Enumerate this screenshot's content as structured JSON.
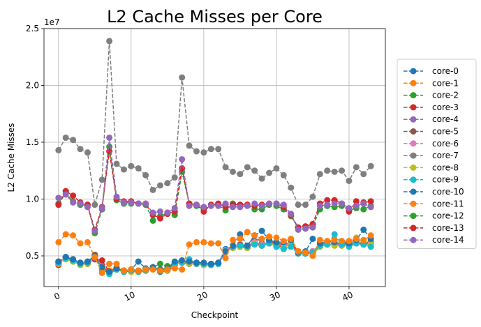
{
  "chart_data": {
    "type": "line",
    "title": "L2 Cache Misses per Core",
    "xlabel": "Checkpoint",
    "ylabel": "L2 Cache Misses",
    "y_scale_label": "1e7",
    "xlim": [
      -2,
      45
    ],
    "ylim": [
      2.3,
      25.0
    ],
    "x_ticks": [
      0,
      10,
      20,
      30,
      40
    ],
    "x_tick_labels": [
      "0",
      "10",
      "20",
      "30",
      "40"
    ],
    "y_ticks": [
      5,
      10,
      15,
      20,
      25
    ],
    "y_tick_labels": [
      "0.5",
      "1.0",
      "1.5",
      "2.0",
      "2.5"
    ],
    "grid": true,
    "legend_position": "right",
    "x": [
      0,
      1,
      2,
      3,
      4,
      5,
      6,
      7,
      8,
      9,
      10,
      11,
      12,
      13,
      14,
      15,
      16,
      17,
      18,
      19,
      20,
      21,
      22,
      23,
      24,
      25,
      26,
      27,
      28,
      29,
      30,
      31,
      32,
      33,
      34,
      35,
      36,
      37,
      38,
      39,
      40,
      41,
      42,
      43
    ],
    "series": [
      {
        "name": "core-0",
        "color": "#1f77b4",
        "values": [
          4.3,
          4.9,
          4.6,
          4.3,
          4.4,
          5.0,
          3.8,
          3.5,
          3.8,
          3.6,
          3.7,
          3.6,
          3.7,
          3.9,
          3.6,
          3.7,
          4.2,
          4.5,
          4.4,
          4.3,
          4.3,
          4.2,
          4.3,
          5.6,
          5.8,
          5.9,
          5.8,
          6.3,
          5.9,
          6.2,
          6.0,
          5.8,
          6.0,
          5.3,
          5.2,
          5.3,
          5.9,
          6.0,
          6.1,
          6.0,
          5.9,
          6.3,
          6.1,
          6.2
        ]
      },
      {
        "name": "core-1",
        "color": "#ff7f0e",
        "values": [
          4.5,
          4.9,
          4.7,
          4.3,
          4.5,
          4.8,
          4.1,
          3.7,
          4.0,
          3.6,
          3.8,
          3.7,
          3.8,
          4.0,
          3.8,
          3.9,
          4.4,
          4.6,
          4.4,
          4.4,
          4.4,
          4.3,
          4.4,
          5.3,
          5.9,
          6.0,
          5.9,
          6.2,
          6.0,
          6.2,
          6.1,
          6.0,
          6.2,
          5.4,
          5.3,
          5.4,
          6.0,
          6.1,
          6.0,
          6.1,
          6.0,
          6.2,
          6.1,
          6.3
        ]
      },
      {
        "name": "core-2",
        "color": "#2ca02c",
        "values": [
          4.4,
          4.9,
          4.5,
          4.2,
          4.4,
          4.9,
          3.9,
          3.5,
          3.9,
          3.7,
          3.8,
          3.7,
          3.8,
          4.0,
          4.3,
          4.1,
          4.3,
          4.5,
          4.3,
          4.4,
          4.3,
          4.2,
          4.4,
          5.5,
          5.7,
          5.9,
          5.8,
          6.2,
          6.0,
          6.1,
          6.0,
          5.9,
          6.1,
          5.3,
          5.2,
          5.4,
          5.9,
          6.1,
          6.0,
          6.2,
          5.9,
          6.2,
          6.0,
          6.1
        ]
      },
      {
        "name": "core-3",
        "color": "#d62728",
        "values": [
          4.2,
          4.8,
          4.6,
          4.3,
          4.3,
          4.7,
          4.6,
          3.6,
          3.8,
          3.7,
          3.6,
          3.6,
          3.7,
          3.9,
          3.8,
          3.7,
          4.3,
          4.4,
          4.3,
          4.3,
          4.2,
          4.2,
          4.3,
          5.4,
          5.8,
          5.8,
          5.7,
          6.1,
          5.9,
          6.1,
          5.9,
          5.8,
          6.0,
          5.2,
          5.2,
          5.3,
          5.8,
          6.0,
          6.0,
          5.9,
          5.9,
          6.1,
          6.0,
          6.2
        ]
      },
      {
        "name": "core-4",
        "color": "#9467bd",
        "values": [
          4.4,
          4.9,
          4.5,
          4.3,
          4.4,
          4.8,
          3.9,
          3.5,
          3.8,
          3.6,
          3.7,
          3.6,
          3.8,
          3.9,
          3.7,
          3.8,
          4.3,
          4.4,
          4.4,
          4.3,
          4.3,
          4.2,
          4.3,
          5.5,
          5.8,
          5.9,
          5.8,
          6.2,
          6.0,
          6.2,
          6.0,
          5.9,
          6.1,
          5.3,
          5.3,
          5.4,
          5.9,
          6.1,
          6.1,
          6.0,
          6.0,
          6.2,
          6.1,
          6.2
        ]
      },
      {
        "name": "core-5",
        "color": "#8c564b",
        "values": [
          4.5,
          4.8,
          4.6,
          4.4,
          4.4,
          5.1,
          3.9,
          3.6,
          3.9,
          3.6,
          3.7,
          3.7,
          3.8,
          3.9,
          3.7,
          3.8,
          4.4,
          4.5,
          4.4,
          4.4,
          4.3,
          4.3,
          4.3,
          5.5,
          5.9,
          6.0,
          5.9,
          6.8,
          6.1,
          6.3,
          6.1,
          6.0,
          6.1,
          5.4,
          5.3,
          5.4,
          6.0,
          6.1,
          6.1,
          6.1,
          6.0,
          6.2,
          6.1,
          6.2
        ]
      },
      {
        "name": "core-6",
        "color": "#e377c2",
        "values": [
          4.4,
          4.8,
          4.6,
          4.3,
          4.4,
          5.0,
          3.9,
          3.5,
          3.8,
          3.6,
          3.7,
          3.6,
          3.7,
          3.9,
          3.7,
          3.8,
          4.3,
          4.4,
          4.4,
          4.3,
          4.3,
          4.2,
          4.3,
          5.5,
          5.8,
          5.9,
          5.8,
          6.2,
          6.0,
          6.2,
          6.0,
          5.9,
          6.1,
          5.3,
          5.3,
          5.4,
          5.9,
          6.1,
          6.0,
          6.0,
          6.0,
          6.2,
          6.1,
          6.1
        ]
      },
      {
        "name": "core-7",
        "color": "#7f7f7f",
        "values": [
          14.3,
          15.4,
          15.2,
          14.4,
          14.1,
          9.5,
          11.7,
          23.9,
          13.1,
          12.6,
          12.9,
          12.7,
          12.1,
          10.8,
          11.2,
          11.4,
          11.9,
          20.7,
          14.7,
          14.2,
          14.1,
          14.4,
          14.4,
          12.8,
          12.4,
          12.2,
          12.8,
          12.5,
          11.8,
          12.3,
          12.7,
          12.1,
          11.0,
          9.5,
          9.5,
          10.2,
          12.2,
          12.5,
          12.4,
          12.5,
          11.6,
          12.8,
          12.2,
          12.9
        ]
      },
      {
        "name": "core-8",
        "color": "#bcbd22",
        "values": [
          4.3,
          4.7,
          4.5,
          4.2,
          4.3,
          4.9,
          3.8,
          3.5,
          3.8,
          3.6,
          3.6,
          3.6,
          3.7,
          3.9,
          3.7,
          3.7,
          4.3,
          4.4,
          4.3,
          4.3,
          4.2,
          4.2,
          4.3,
          5.4,
          5.7,
          5.8,
          5.7,
          6.1,
          5.9,
          6.1,
          5.9,
          5.8,
          6.0,
          5.2,
          5.2,
          5.1,
          5.8,
          6.0,
          5.9,
          5.9,
          5.9,
          6.6,
          6.2,
          6.0
        ]
      },
      {
        "name": "core-9",
        "color": "#17becf",
        "values": [
          4.4,
          4.8,
          4.6,
          4.3,
          4.4,
          4.9,
          3.7,
          3.4,
          3.8,
          3.6,
          3.7,
          3.6,
          3.7,
          3.9,
          3.7,
          3.8,
          4.3,
          4.4,
          4.7,
          4.3,
          4.3,
          4.2,
          4.3,
          5.4,
          5.8,
          5.9,
          5.8,
          6.0,
          5.9,
          6.1,
          5.8,
          5.6,
          5.8,
          5.2,
          5.2,
          5.3,
          5.9,
          6.0,
          6.9,
          6.0,
          5.8,
          6.1,
          6.0,
          5.8
        ]
      },
      {
        "name": "core-10",
        "color": "#1f77b4",
        "values": [
          4.5,
          4.9,
          4.7,
          4.4,
          4.5,
          5.0,
          4.0,
          3.6,
          3.9,
          3.7,
          3.8,
          4.5,
          3.9,
          4.0,
          3.8,
          3.9,
          4.5,
          4.6,
          4.5,
          4.4,
          4.4,
          4.3,
          4.4,
          5.4,
          5.9,
          6.9,
          5.9,
          6.8,
          7.2,
          6.4,
          6.2,
          6.2,
          6.4,
          5.3,
          5.4,
          6.5,
          6.1,
          6.3,
          6.2,
          6.3,
          6.1,
          6.4,
          7.3,
          6.5
        ]
      },
      {
        "name": "core-11",
        "color": "#ff7f0e",
        "values": [
          6.2,
          6.9,
          6.8,
          6.1,
          6.2,
          4.9,
          3.5,
          4.3,
          4.3,
          3.7,
          3.8,
          3.7,
          3.8,
          3.8,
          3.7,
          3.8,
          3.9,
          3.8,
          6.0,
          6.2,
          6.2,
          6.1,
          6.1,
          4.8,
          6.4,
          6.5,
          7.1,
          6.8,
          6.5,
          6.7,
          6.6,
          6.3,
          6.5,
          5.4,
          5.3,
          5.0,
          6.4,
          6.3,
          6.4,
          6.3,
          6.3,
          6.5,
          6.4,
          6.8
        ]
      },
      {
        "name": "core-12",
        "color": "#2ca02c",
        "values": [
          9.6,
          10.5,
          9.8,
          9.5,
          9.5,
          7.0,
          9.1,
          14.6,
          9.9,
          9.6,
          9.6,
          9.6,
          9.5,
          8.1,
          8.5,
          8.8,
          8.6,
          12.4,
          9.6,
          9.4,
          9.1,
          9.5,
          9.5,
          9.0,
          9.6,
          9.5,
          9.5,
          9.1,
          9.1,
          9.5,
          9.4,
          9.1,
          8.5,
          7.5,
          7.4,
          7.6,
          9.1,
          9.4,
          9.3,
          9.4,
          9.0,
          9.2,
          9.1,
          9.4
        ]
      },
      {
        "name": "core-13",
        "color": "#d62728",
        "values": [
          9.5,
          10.7,
          10.3,
          9.7,
          9.5,
          7.3,
          9.3,
          14.2,
          10.0,
          9.8,
          9.8,
          9.6,
          9.6,
          8.6,
          8.3,
          8.7,
          8.9,
          12.7,
          9.6,
          9.5,
          8.9,
          9.5,
          9.6,
          9.3,
          9.5,
          9.5,
          9.5,
          9.4,
          9.5,
          9.6,
          9.6,
          9.3,
          8.6,
          7.5,
          7.6,
          7.8,
          9.6,
          9.9,
          9.9,
          9.6,
          8.9,
          9.8,
          9.7,
          9.8
        ]
      },
      {
        "name": "core-14",
        "color": "#9467bd",
        "values": [
          10.1,
          10.4,
          9.7,
          9.6,
          9.3,
          7.2,
          9.2,
          15.4,
          10.2,
          9.7,
          9.7,
          9.6,
          9.6,
          8.8,
          8.9,
          8.8,
          9.2,
          13.5,
          9.4,
          9.5,
          9.3,
          9.4,
          9.4,
          9.6,
          9.3,
          9.3,
          9.4,
          9.6,
          9.4,
          9.6,
          9.6,
          9.5,
          8.7,
          7.3,
          7.4,
          7.5,
          9.4,
          9.5,
          9.6,
          9.6,
          9.2,
          9.4,
          9.6,
          9.3
        ]
      }
    ]
  }
}
